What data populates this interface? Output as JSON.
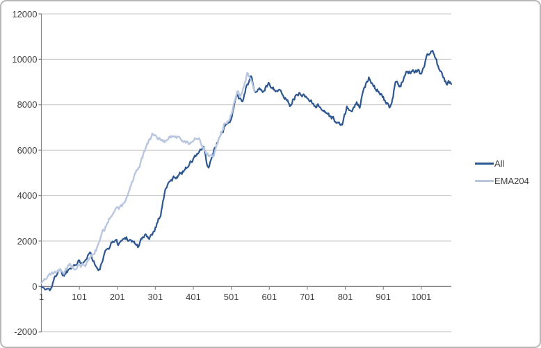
{
  "chart_data": {
    "type": "line",
    "title": "",
    "xlabel": "",
    "ylabel": "",
    "grid": "horizontal",
    "legend_position": "right",
    "x_ticks": [
      1,
      101,
      201,
      301,
      401,
      501,
      601,
      701,
      801,
      901,
      1001
    ],
    "x_range": [
      1,
      1080
    ],
    "y_ticks": [
      12000,
      10000,
      8000,
      6000,
      4000,
      2000,
      0,
      -2000
    ],
    "y_range": [
      -2000,
      12000
    ],
    "axis_cross_y": 0,
    "style": {
      "background": "#ffffff",
      "frame_border": "#b7b7b7",
      "gridline_color": "#c6c6c6",
      "axis_color": "#858585",
      "tick_text_color": "#3d3d3d"
    },
    "series": [
      {
        "name": "All",
        "color": "#2d5790",
        "line_width": 2.2,
        "points": [
          [
            1,
            0
          ],
          [
            6,
            -60
          ],
          [
            12,
            -140
          ],
          [
            18,
            -100
          ],
          [
            24,
            -150
          ],
          [
            30,
            100
          ],
          [
            36,
            350
          ],
          [
            42,
            600
          ],
          [
            48,
            800
          ],
          [
            54,
            620
          ],
          [
            60,
            500
          ],
          [
            66,
            620
          ],
          [
            72,
            750
          ],
          [
            78,
            870
          ],
          [
            85,
            1000
          ],
          [
            92,
            950
          ],
          [
            100,
            1060
          ],
          [
            108,
            1120
          ],
          [
            115,
            1200
          ],
          [
            122,
            1360
          ],
          [
            130,
            1500
          ],
          [
            138,
            1150
          ],
          [
            145,
            900
          ],
          [
            152,
            620
          ],
          [
            158,
            900
          ],
          [
            165,
            1300
          ],
          [
            172,
            1560
          ],
          [
            180,
            1760
          ],
          [
            188,
            1950
          ],
          [
            195,
            2060
          ],
          [
            202,
            1900
          ],
          [
            210,
            1960
          ],
          [
            218,
            2100
          ],
          [
            225,
            2160
          ],
          [
            232,
            2060
          ],
          [
            240,
            2000
          ],
          [
            248,
            1900
          ],
          [
            255,
            1760
          ],
          [
            262,
            2000
          ],
          [
            270,
            2160
          ],
          [
            278,
            2260
          ],
          [
            285,
            2160
          ],
          [
            292,
            2300
          ],
          [
            301,
            2600
          ],
          [
            308,
            2900
          ],
          [
            315,
            3200
          ],
          [
            322,
            3800
          ],
          [
            330,
            4400
          ],
          [
            338,
            4560
          ],
          [
            345,
            4700
          ],
          [
            352,
            4820
          ],
          [
            360,
            4900
          ],
          [
            367,
            4960
          ],
          [
            374,
            5060
          ],
          [
            382,
            5260
          ],
          [
            390,
            5400
          ],
          [
            397,
            5500
          ],
          [
            403,
            5660
          ],
          [
            410,
            5800
          ],
          [
            418,
            5960
          ],
          [
            424,
            6060
          ],
          [
            429,
            6060
          ],
          [
            434,
            5600
          ],
          [
            440,
            5160
          ],
          [
            447,
            5500
          ],
          [
            455,
            5960
          ],
          [
            462,
            6200
          ],
          [
            469,
            6500
          ],
          [
            476,
            6800
          ],
          [
            483,
            6960
          ],
          [
            489,
            7100
          ],
          [
            495,
            7260
          ],
          [
            501,
            7400
          ],
          [
            507,
            7800
          ],
          [
            512,
            8200
          ],
          [
            516,
            8560
          ],
          [
            521,
            8400
          ],
          [
            526,
            8260
          ],
          [
            530,
            8160
          ],
          [
            535,
            8460
          ],
          [
            540,
            8760
          ],
          [
            546,
            9000
          ],
          [
            553,
            9260
          ],
          [
            559,
            8800
          ],
          [
            565,
            8500
          ],
          [
            572,
            8700
          ],
          [
            580,
            8660
          ],
          [
            587,
            8580
          ],
          [
            594,
            8800
          ],
          [
            600,
            8940
          ],
          [
            608,
            8800
          ],
          [
            615,
            8700
          ],
          [
            622,
            8640
          ],
          [
            629,
            8560
          ],
          [
            636,
            8430
          ],
          [
            645,
            8250
          ],
          [
            655,
            8030
          ],
          [
            663,
            8200
          ],
          [
            670,
            8350
          ],
          [
            678,
            8450
          ],
          [
            685,
            8500
          ],
          [
            693,
            8400
          ],
          [
            700,
            8300
          ],
          [
            708,
            8200
          ],
          [
            719,
            8030
          ],
          [
            728,
            7950
          ],
          [
            737,
            7880
          ],
          [
            748,
            7700
          ],
          [
            758,
            7550
          ],
          [
            768,
            7400
          ],
          [
            779,
            7200
          ],
          [
            788,
            7100
          ],
          [
            795,
            7260
          ],
          [
            806,
            7900
          ],
          [
            815,
            7670
          ],
          [
            824,
            7850
          ],
          [
            832,
            8030
          ],
          [
            838,
            7850
          ],
          [
            845,
            8300
          ],
          [
            852,
            8730
          ],
          [
            858,
            9000
          ],
          [
            864,
            9250
          ],
          [
            871,
            9000
          ],
          [
            878,
            8800
          ],
          [
            886,
            8670
          ],
          [
            894,
            8500
          ],
          [
            901,
            8330
          ],
          [
            908,
            8100
          ],
          [
            915,
            7900
          ],
          [
            920,
            7800
          ],
          [
            927,
            8400
          ],
          [
            934,
            9100
          ],
          [
            940,
            8950
          ],
          [
            947,
            8880
          ],
          [
            954,
            9100
          ],
          [
            961,
            9340
          ],
          [
            968,
            9420
          ],
          [
            974,
            9480
          ],
          [
            980,
            9560
          ],
          [
            986,
            9440
          ],
          [
            993,
            9520
          ],
          [
            1000,
            9340
          ],
          [
            1006,
            9600
          ],
          [
            1013,
            9950
          ],
          [
            1019,
            10250
          ],
          [
            1025,
            10300
          ],
          [
            1031,
            10400
          ],
          [
            1037,
            10100
          ],
          [
            1044,
            9750
          ],
          [
            1051,
            9450
          ],
          [
            1057,
            9250
          ],
          [
            1063,
            9050
          ],
          [
            1068,
            8900
          ],
          [
            1072,
            9080
          ],
          [
            1080,
            8900
          ]
        ]
      },
      {
        "name": "EMA204",
        "color": "#b9c6df",
        "line_width": 2.4,
        "points": [
          [
            1,
            150
          ],
          [
            8,
            260
          ],
          [
            15,
            430
          ],
          [
            22,
            500
          ],
          [
            28,
            550
          ],
          [
            35,
            600
          ],
          [
            42,
            660
          ],
          [
            50,
            700
          ],
          [
            56,
            620
          ],
          [
            62,
            600
          ],
          [
            68,
            800
          ],
          [
            75,
            950
          ],
          [
            82,
            860
          ],
          [
            90,
            800
          ],
          [
            98,
            950
          ],
          [
            105,
            900
          ],
          [
            112,
            950
          ],
          [
            118,
            1000
          ],
          [
            124,
            1060
          ],
          [
            130,
            1250
          ],
          [
            136,
            1400
          ],
          [
            142,
            1560
          ],
          [
            148,
            1700
          ],
          [
            154,
            2000
          ],
          [
            160,
            2350
          ],
          [
            166,
            2500
          ],
          [
            172,
            2700
          ],
          [
            178,
            2950
          ],
          [
            184,
            3150
          ],
          [
            190,
            3300
          ],
          [
            196,
            3360
          ],
          [
            202,
            3400
          ],
          [
            208,
            3460
          ],
          [
            215,
            3560
          ],
          [
            221,
            3660
          ],
          [
            226,
            3900
          ],
          [
            232,
            4200
          ],
          [
            238,
            4500
          ],
          [
            245,
            4800
          ],
          [
            252,
            5060
          ],
          [
            258,
            5200
          ],
          [
            261,
            5300
          ],
          [
            265,
            5560
          ],
          [
            270,
            5800
          ],
          [
            275,
            6060
          ],
          [
            280,
            6300
          ],
          [
            287,
            6500
          ],
          [
            294,
            6690
          ],
          [
            300,
            6600
          ],
          [
            306,
            6560
          ],
          [
            312,
            6500
          ],
          [
            318,
            6400
          ],
          [
            325,
            6350
          ],
          [
            332,
            6500
          ],
          [
            340,
            6600
          ],
          [
            349,
            6650
          ],
          [
            356,
            6560
          ],
          [
            365,
            6500
          ],
          [
            372,
            6460
          ],
          [
            380,
            6400
          ],
          [
            386,
            6350
          ],
          [
            392,
            6300
          ],
          [
            398,
            6400
          ],
          [
            405,
            6500
          ],
          [
            410,
            6560
          ],
          [
            416,
            6500
          ],
          [
            422,
            6300
          ],
          [
            429,
            6060
          ],
          [
            435,
            5900
          ],
          [
            440,
            5800
          ],
          [
            446,
            5750
          ],
          [
            452,
            5700
          ],
          [
            458,
            6000
          ],
          [
            465,
            6300
          ],
          [
            470,
            6600
          ],
          [
            476,
            6900
          ],
          [
            483,
            7150
          ],
          [
            489,
            7200
          ],
          [
            495,
            7300
          ],
          [
            500,
            7560
          ],
          [
            505,
            7800
          ],
          [
            510,
            8200
          ],
          [
            516,
            8600
          ],
          [
            521,
            8500
          ],
          [
            526,
            8400
          ],
          [
            531,
            8650
          ],
          [
            536,
            8950
          ],
          [
            540,
            9100
          ],
          [
            544,
            9430
          ],
          [
            548,
            9300
          ],
          [
            552,
            9100
          ],
          [
            557,
            8850
          ],
          [
            562,
            8600
          ]
        ]
      }
    ],
    "legend": [
      {
        "label": "All",
        "color": "#2d5790"
      },
      {
        "label": "EMA204",
        "color": "#b9c6df"
      }
    ]
  }
}
